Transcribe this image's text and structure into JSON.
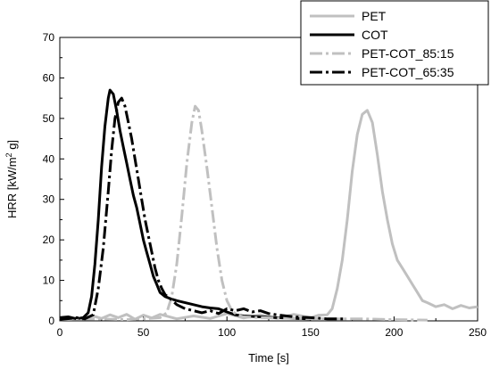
{
  "chart_data": {
    "type": "line",
    "xlabel": "Time [s]",
    "ylabel": "HRR [kW/m",
    "ylabel_sup": "2",
    "ylabel_end": " g]",
    "xlim": [
      0,
      250
    ],
    "ylim": [
      0,
      70
    ],
    "xticks": [
      0,
      50,
      100,
      150,
      200,
      250
    ],
    "yticks": [
      0,
      10,
      20,
      30,
      40,
      50,
      60,
      70
    ],
    "grid": false,
    "legend_position": "top-right",
    "series": [
      {
        "name": "PET",
        "color": "#c0c0c0",
        "dash": "solid",
        "points": [
          [
            0,
            0.8
          ],
          [
            10,
            0.5
          ],
          [
            20,
            1.2
          ],
          [
            25,
            0.6
          ],
          [
            30,
            1.5
          ],
          [
            35,
            0.8
          ],
          [
            40,
            1.6
          ],
          [
            45,
            0.4
          ],
          [
            50,
            1.4
          ],
          [
            55,
            0.7
          ],
          [
            60,
            1.6
          ],
          [
            70,
            0.5
          ],
          [
            80,
            1.2
          ],
          [
            90,
            0.6
          ],
          [
            100,
            1.8
          ],
          [
            110,
            0.7
          ],
          [
            120,
            1.5
          ],
          [
            130,
            0.6
          ],
          [
            140,
            1.6
          ],
          [
            150,
            0.8
          ],
          [
            155,
            1.4
          ],
          [
            160,
            1.5
          ],
          [
            163,
            3
          ],
          [
            166,
            8
          ],
          [
            169,
            15
          ],
          [
            172,
            25
          ],
          [
            175,
            37
          ],
          [
            178,
            46
          ],
          [
            181,
            51
          ],
          [
            184,
            52
          ],
          [
            187,
            49
          ],
          [
            190,
            41
          ],
          [
            193,
            32
          ],
          [
            196,
            25
          ],
          [
            199,
            19
          ],
          [
            202,
            15
          ],
          [
            205,
            13
          ],
          [
            208,
            11
          ],
          [
            211,
            9
          ],
          [
            214,
            7
          ],
          [
            217,
            5
          ],
          [
            220,
            4.5
          ],
          [
            225,
            3.5
          ],
          [
            230,
            4
          ],
          [
            235,
            3
          ],
          [
            240,
            3.8
          ],
          [
            245,
            3.2
          ],
          [
            250,
            3.5
          ]
        ]
      },
      {
        "name": "COT",
        "color": "#000000",
        "dash": "solid",
        "points": [
          [
            0,
            0.8
          ],
          [
            5,
            1
          ],
          [
            10,
            0.5
          ],
          [
            14,
            0.8
          ],
          [
            17,
            2
          ],
          [
            19,
            6
          ],
          [
            21,
            14
          ],
          [
            23,
            25
          ],
          [
            25,
            38
          ],
          [
            27,
            48
          ],
          [
            29,
            55
          ],
          [
            30,
            57
          ],
          [
            32,
            56
          ],
          [
            34,
            52
          ],
          [
            36,
            47
          ],
          [
            38,
            43
          ],
          [
            40,
            39
          ],
          [
            42,
            35
          ],
          [
            44,
            31
          ],
          [
            46,
            28
          ],
          [
            48,
            24
          ],
          [
            50,
            20
          ],
          [
            52,
            17
          ],
          [
            54,
            14
          ],
          [
            56,
            11
          ],
          [
            58,
            9
          ],
          [
            60,
            7
          ],
          [
            63,
            6
          ],
          [
            66,
            5.5
          ],
          [
            70,
            5
          ],
          [
            75,
            4.5
          ],
          [
            80,
            4
          ],
          [
            85,
            3.5
          ],
          [
            90,
            3.2
          ],
          [
            95,
            3
          ],
          [
            100,
            2.2
          ],
          [
            105,
            1.5
          ],
          [
            110,
            1.2
          ],
          [
            120,
            1
          ],
          [
            130,
            0.8
          ],
          [
            140,
            0.6
          ],
          [
            150,
            0.5
          ]
        ]
      },
      {
        "name": "PET-COT_85:15",
        "color": "#c0c0c0",
        "dash": "14,4,3,4",
        "points": [
          [
            0,
            0.3
          ],
          [
            20,
            0.5
          ],
          [
            40,
            0.3
          ],
          [
            50,
            0.5
          ],
          [
            60,
            0.8
          ],
          [
            64,
            2
          ],
          [
            67,
            6
          ],
          [
            70,
            14
          ],
          [
            73,
            26
          ],
          [
            76,
            39
          ],
          [
            79,
            49
          ],
          [
            81,
            53
          ],
          [
            83,
            52
          ],
          [
            85,
            47
          ],
          [
            88,
            38
          ],
          [
            91,
            28
          ],
          [
            94,
            18
          ],
          [
            97,
            10
          ],
          [
            100,
            5
          ],
          [
            103,
            2.5
          ],
          [
            106,
            1.5
          ],
          [
            110,
            1
          ],
          [
            120,
            0.8
          ],
          [
            140,
            0.6
          ],
          [
            160,
            0.5
          ],
          [
            180,
            0.5
          ],
          [
            200,
            0.3
          ],
          [
            220,
            0.2
          ]
        ]
      },
      {
        "name": "PET-COT_65:35",
        "color": "#000000",
        "dash": "14,4,3,4",
        "points": [
          [
            0,
            0.3
          ],
          [
            10,
            0.8
          ],
          [
            15,
            0.5
          ],
          [
            20,
            1.5
          ],
          [
            23,
            8
          ],
          [
            26,
            18
          ],
          [
            29,
            32
          ],
          [
            31,
            42
          ],
          [
            33,
            50
          ],
          [
            35,
            54
          ],
          [
            37,
            55
          ],
          [
            39,
            53
          ],
          [
            41,
            49
          ],
          [
            43,
            45
          ],
          [
            45,
            40
          ],
          [
            47,
            35
          ],
          [
            49,
            30
          ],
          [
            51,
            25
          ],
          [
            53,
            21
          ],
          [
            55,
            17
          ],
          [
            57,
            13
          ],
          [
            59,
            10
          ],
          [
            61,
            8
          ],
          [
            63,
            6.5
          ],
          [
            66,
            5.5
          ],
          [
            70,
            4
          ],
          [
            75,
            3
          ],
          [
            80,
            2.5
          ],
          [
            85,
            2
          ],
          [
            90,
            2.5
          ],
          [
            95,
            1.8
          ],
          [
            100,
            3
          ],
          [
            105,
            2.5
          ],
          [
            110,
            3
          ],
          [
            115,
            2.2
          ],
          [
            120,
            2.5
          ],
          [
            125,
            1.8
          ],
          [
            130,
            1.5
          ],
          [
            140,
            1
          ],
          [
            150,
            0.8
          ],
          [
            160,
            0.5
          ],
          [
            170,
            0.5
          ]
        ]
      }
    ]
  }
}
